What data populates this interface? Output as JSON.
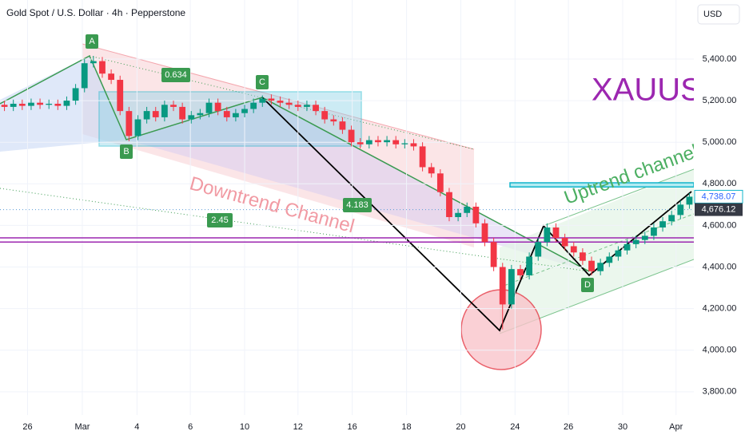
{
  "chart_data": {
    "type": "candlestick",
    "title": "Gold Spot / U.S. Dollar · 4h · Pepperstone",
    "currency": "USD",
    "open": [
      5180,
      5170,
      5185,
      5175,
      5190,
      5180,
      5185,
      5175,
      5200,
      5260,
      5380,
      5390,
      5330,
      5300,
      5150,
      5030,
      5110,
      5150,
      5120,
      5180,
      5170,
      5110,
      5130,
      5140,
      5190,
      5150,
      5120,
      5140,
      5160,
      5190,
      5210,
      5200,
      5190,
      5180,
      5170,
      5180,
      5150,
      5110,
      5100,
      5060,
      5000,
      4990,
      5010,
      5000,
      5010,
      4990,
      4995,
      4980,
      4880,
      4850,
      4760,
      4640,
      4660,
      4690,
      4610,
      4520,
      4400,
      4220,
      4390,
      4360,
      4450,
      4520,
      4590,
      4540,
      4500,
      4470,
      4430,
      4380,
      4420,
      4450,
      4480,
      4510,
      4530,
      4550,
      4590,
      4620,
      4650,
      4700
    ],
    "high": [
      5200,
      5205,
      5205,
      5210,
      5210,
      5205,
      5205,
      5220,
      5280,
      5400,
      5415,
      5410,
      5350,
      5320,
      5170,
      5130,
      5170,
      5170,
      5200,
      5200,
      5190,
      5150,
      5160,
      5210,
      5210,
      5170,
      5160,
      5180,
      5210,
      5225,
      5230,
      5220,
      5210,
      5200,
      5200,
      5200,
      5170,
      5130,
      5120,
      5080,
      5020,
      5030,
      5030,
      5030,
      5030,
      5015,
      5015,
      5000,
      4900,
      4870,
      4780,
      4680,
      4710,
      4710,
      4630,
      4540,
      4420,
      4410,
      4410,
      4470,
      4540,
      4610,
      4610,
      4560,
      4520,
      4490,
      4450,
      4440,
      4470,
      4500,
      4530,
      4550,
      4570,
      4610,
      4640,
      4670,
      4720,
      4755
    ],
    "low": [
      5150,
      5150,
      5155,
      5155,
      5160,
      5160,
      5155,
      5155,
      5180,
      5240,
      5360,
      5310,
      5280,
      5130,
      5005,
      5010,
      5090,
      5100,
      5100,
      5150,
      5090,
      5090,
      5110,
      5120,
      5130,
      5100,
      5100,
      5120,
      5140,
      5170,
      5180,
      5170,
      5160,
      5150,
      5150,
      5130,
      5090,
      5080,
      5040,
      4980,
      4970,
      4970,
      4980,
      4980,
      4970,
      4970,
      4960,
      4860,
      4830,
      4740,
      4620,
      4620,
      4640,
      4590,
      4500,
      4380,
      4100,
      4200,
      4340,
      4340,
      4430,
      4500,
      4520,
      4480,
      4450,
      4410,
      4360,
      4360,
      4400,
      4430,
      4460,
      4490,
      4510,
      4530,
      4570,
      4600,
      4630,
      4680
    ],
    "close": [
      5170,
      5185,
      5175,
      5190,
      5180,
      5185,
      5175,
      5200,
      5260,
      5380,
      5390,
      5330,
      5300,
      5150,
      5030,
      5110,
      5150,
      5120,
      5180,
      5170,
      5110,
      5130,
      5140,
      5190,
      5150,
      5120,
      5140,
      5160,
      5190,
      5210,
      5200,
      5190,
      5180,
      5170,
      5180,
      5150,
      5110,
      5100,
      5060,
      5000,
      4990,
      5010,
      5000,
      5010,
      4990,
      4995,
      4980,
      4880,
      4850,
      4760,
      4640,
      4660,
      4690,
      4610,
      4520,
      4400,
      4220,
      4390,
      4360,
      4450,
      4520,
      4590,
      4540,
      4500,
      4470,
      4430,
      4380,
      4420,
      4450,
      4480,
      4510,
      4530,
      4550,
      4590,
      4620,
      4650,
      4700,
      4738.07
    ],
    "up_color": "#089981",
    "down_color": "#f23645",
    "xlim": [
      -0.5,
      77.5
    ],
    "xticks": [
      {
        "value": 2.6,
        "label": "26"
      },
      {
        "value": 8.75,
        "label": "Mar"
      },
      {
        "value": 14.9,
        "label": "4"
      },
      {
        "value": 20.9,
        "label": "6"
      },
      {
        "value": 27,
        "label": "10"
      },
      {
        "value": 33,
        "label": "12"
      },
      {
        "value": 39.1,
        "label": "16"
      },
      {
        "value": 45.2,
        "label": "18"
      },
      {
        "value": 51.3,
        "label": "20"
      },
      {
        "value": 57.4,
        "label": "24"
      },
      {
        "value": 63.4,
        "label": "26"
      },
      {
        "value": 69.5,
        "label": "30"
      },
      {
        "value": 75.5,
        "label": "Apr"
      }
    ],
    "ylim": [
      3688,
      5684
    ],
    "yticks": [
      {
        "value": 3800,
        "label": "3,800.00"
      },
      {
        "value": 4000,
        "label": "4,000.00"
      },
      {
        "value": 4200,
        "label": "4,200.00"
      },
      {
        "value": 4400,
        "label": "4,400.00"
      },
      {
        "value": 4600,
        "label": "4,600.00"
      },
      {
        "value": 4800,
        "label": "4,800.00"
      },
      {
        "value": 5000,
        "label": "5,000.00"
      },
      {
        "value": 5200,
        "label": "5,200.00"
      },
      {
        "value": 5400,
        "label": "5,400.00"
      }
    ],
    "last_price": {
      "value": 4738.07,
      "label": "4,738.07"
    },
    "ref_price": {
      "value": 4676.12,
      "label": "4,676.12"
    },
    "levels": [
      4540,
      4520
    ],
    "zone": [
      4785,
      4805
    ],
    "pattern_labels": [
      "A",
      "B",
      "C",
      "D"
    ],
    "ratios": [
      "0.634",
      "4.183",
      "2.45"
    ],
    "symbol": "XAUUSD",
    "downtrend_text": "Downtrend Channel",
    "uptrend_text": "Uptrend channel"
  }
}
